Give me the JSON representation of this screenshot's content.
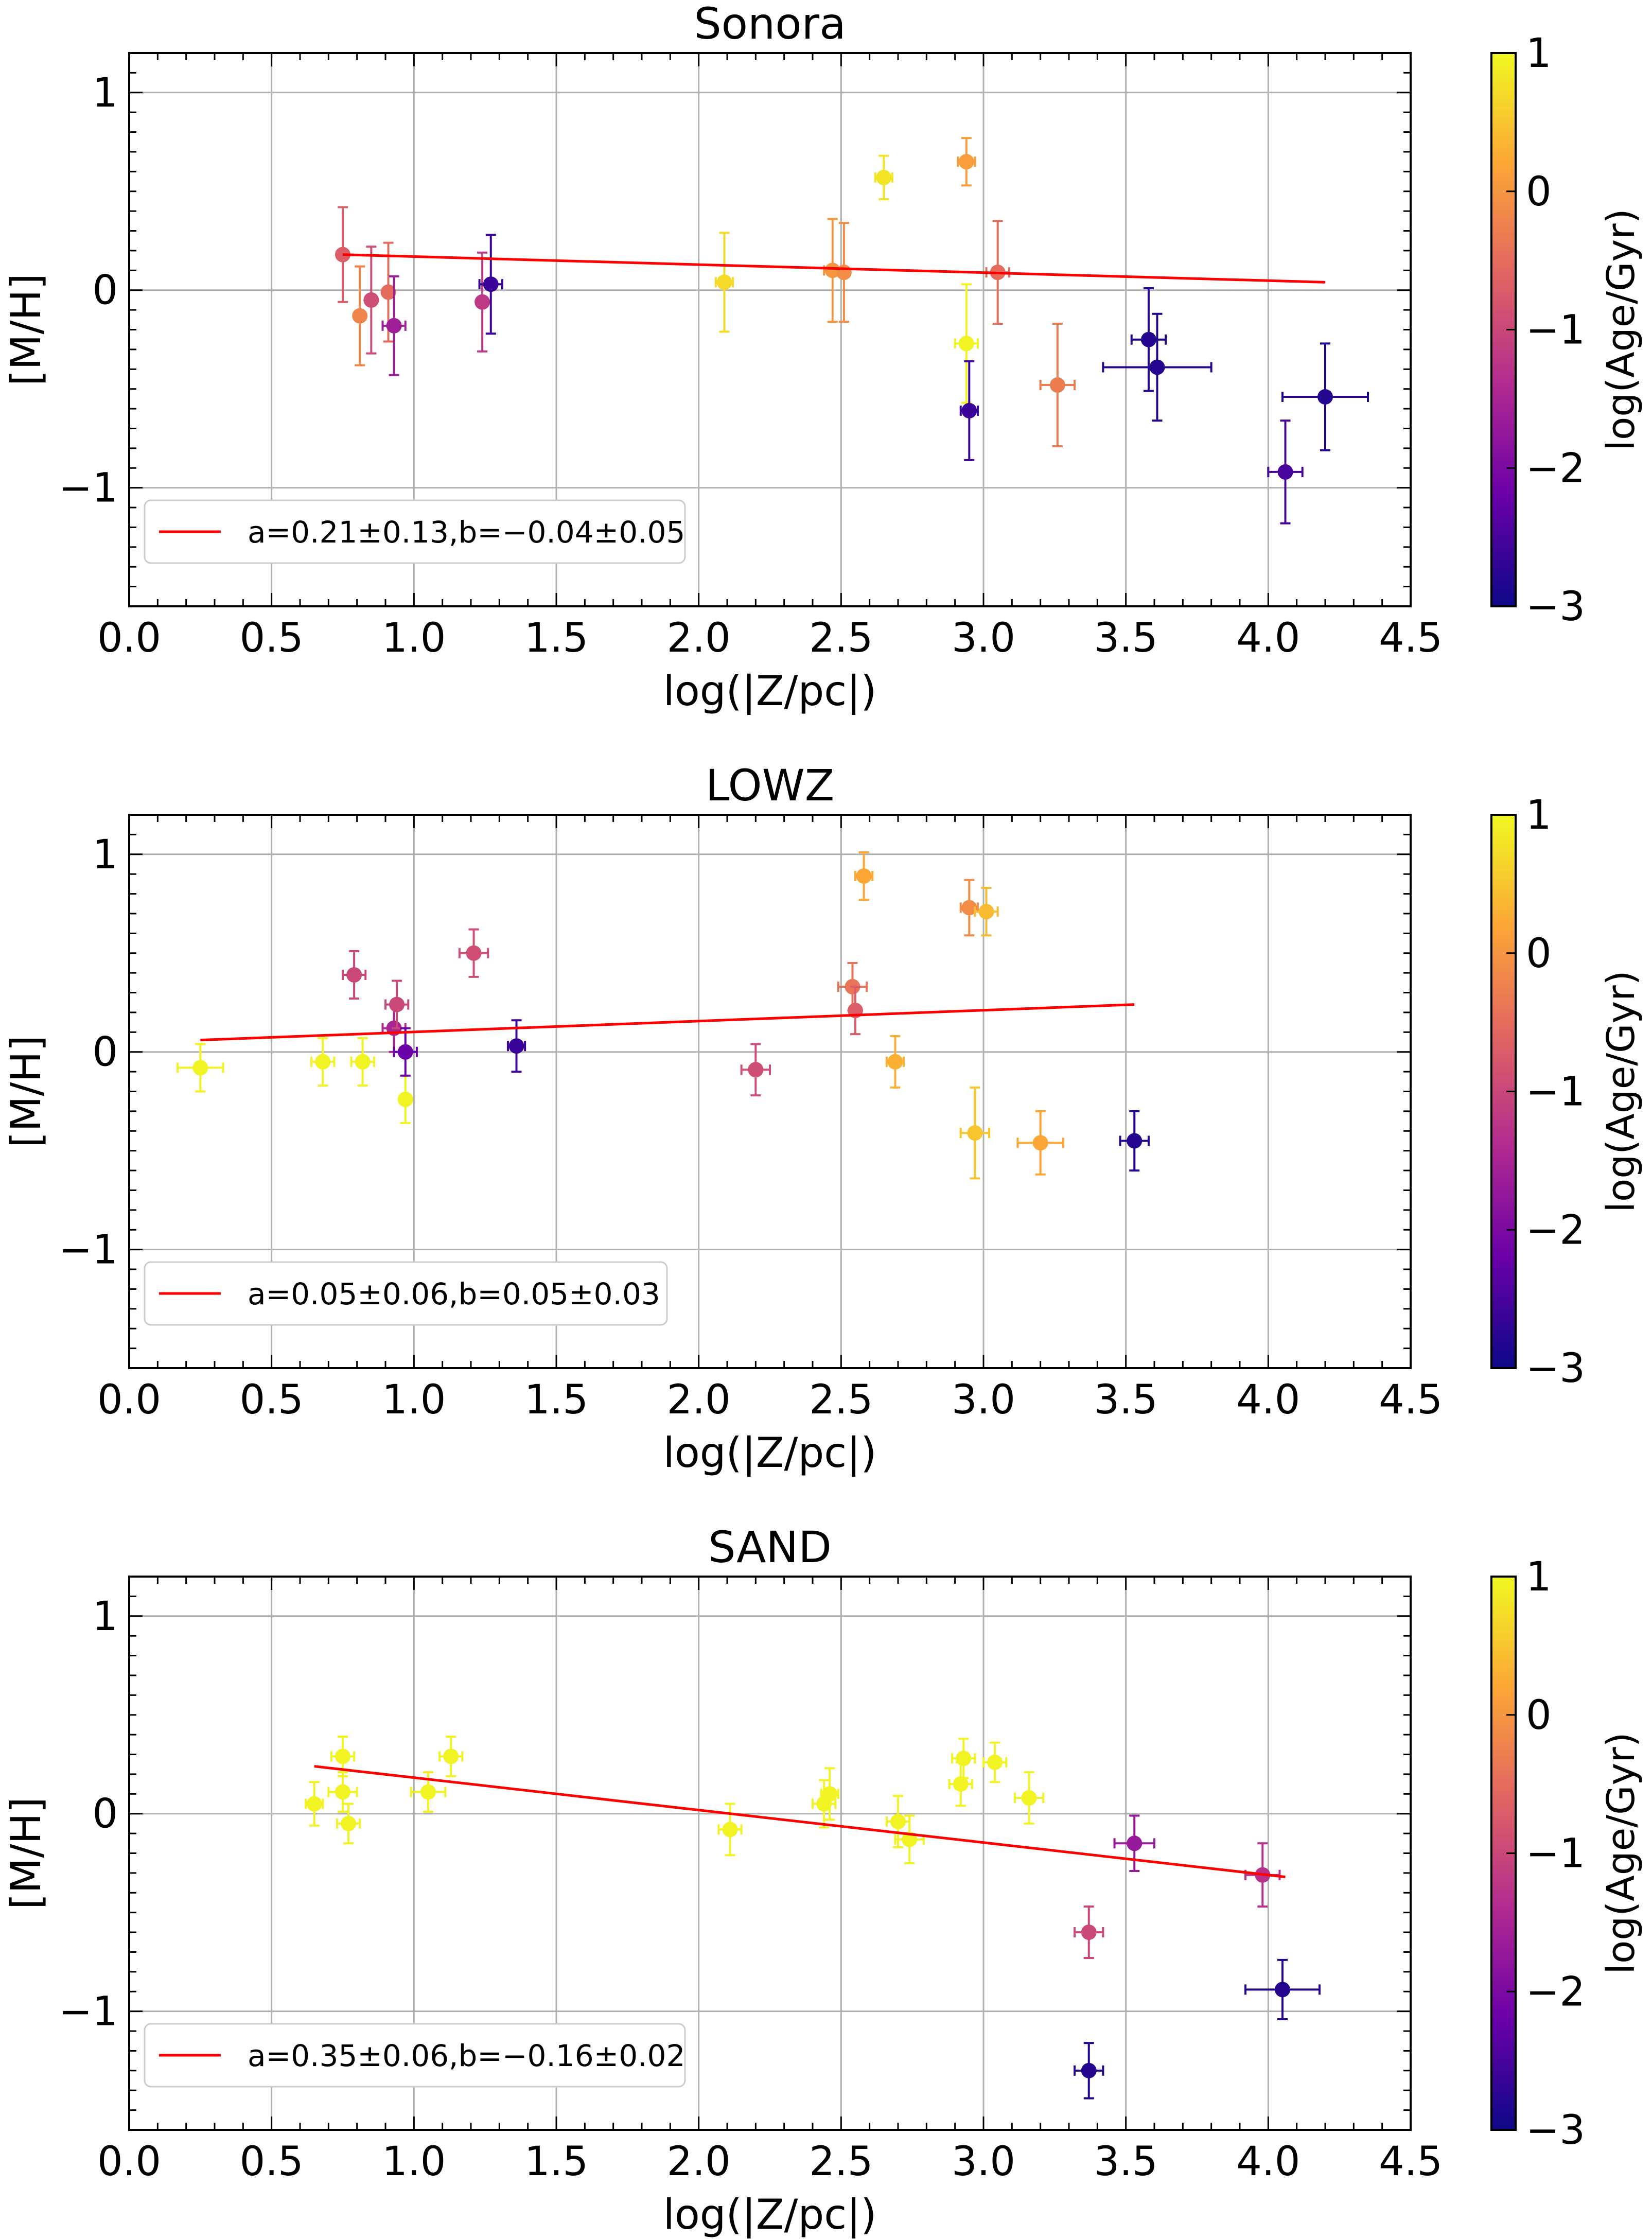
{
  "figure": {
    "colorbar_label": "log(Age/Gyr)",
    "colorbar_ticks": [
      "1",
      "0",
      "−1",
      "−2",
      "−3"
    ],
    "colorbar_values": [
      1,
      0,
      -1,
      -2,
      -3
    ]
  },
  "chart_data": [
    {
      "type": "scatter",
      "title": "Sonora",
      "xlabel": "log(|Z/pc|)",
      "ylabel": "[M/H]",
      "xlim": [
        0.0,
        4.5
      ],
      "ylim": [
        -1.6,
        1.2
      ],
      "xticks": [
        0.0,
        0.5,
        1.0,
        1.5,
        2.0,
        2.5,
        3.0,
        3.5,
        4.0,
        4.5
      ],
      "xtick_labels": [
        "0.0",
        "0.5",
        "1.0",
        "1.5",
        "2.0",
        "2.5",
        "3.0",
        "3.5",
        "4.0",
        "4.5"
      ],
      "yticks": [
        1,
        0,
        -1
      ],
      "ytick_labels": [
        "1",
        "0",
        "−1"
      ],
      "grid": true,
      "color_by": "log(Age/Gyr)",
      "clim": [
        -3,
        1
      ],
      "fit": {
        "x": [
          0.75,
          4.2
        ],
        "y": [
          0.18,
          0.04
        ]
      },
      "legend": {
        "label": "a=0.21±0.13,b=−0.04±0.05",
        "position": "lower-left"
      },
      "points": [
        {
          "x": 0.75,
          "y": 0.18,
          "yerr": 0.24,
          "xerr": 0.0,
          "c": -0.7
        },
        {
          "x": 0.81,
          "y": -0.13,
          "yerr": 0.25,
          "xerr": 0.0,
          "c": -0.2
        },
        {
          "x": 0.85,
          "y": -0.05,
          "yerr": 0.27,
          "xerr": 0.0,
          "c": -0.9
        },
        {
          "x": 0.91,
          "y": -0.01,
          "yerr": 0.25,
          "xerr": 0.0,
          "c": -0.5
        },
        {
          "x": 0.93,
          "y": -0.18,
          "yerr": 0.25,
          "xerr": 0.04,
          "c": -1.6
        },
        {
          "x": 1.24,
          "y": -0.06,
          "yerr": 0.25,
          "xerr": 0.0,
          "c": -1.2
        },
        {
          "x": 1.27,
          "y": 0.03,
          "yerr": 0.25,
          "xerr": 0.04,
          "c": -2.6
        },
        {
          "x": 2.09,
          "y": 0.04,
          "yerr": 0.25,
          "xerr": 0.03,
          "c": 0.7
        },
        {
          "x": 2.47,
          "y": 0.1,
          "yerr": 0.26,
          "xerr": 0.03,
          "c": 0.0
        },
        {
          "x": 2.51,
          "y": 0.09,
          "yerr": 0.25,
          "xerr": 0.0,
          "c": -0.1
        },
        {
          "x": 2.65,
          "y": 0.57,
          "yerr": 0.11,
          "xerr": 0.03,
          "c": 0.8
        },
        {
          "x": 2.94,
          "y": 0.65,
          "yerr": 0.12,
          "xerr": 0.03,
          "c": 0.1
        },
        {
          "x": 2.94,
          "y": -0.27,
          "yerr": 0.3,
          "xerr": 0.04,
          "c": 0.95
        },
        {
          "x": 2.95,
          "y": -0.61,
          "yerr": 0.25,
          "xerr": 0.03,
          "c": -2.6
        },
        {
          "x": 3.05,
          "y": 0.09,
          "yerr": 0.26,
          "xerr": 0.04,
          "c": -0.5
        },
        {
          "x": 3.26,
          "y": -0.48,
          "yerr": 0.31,
          "xerr": 0.06,
          "c": -0.3
        },
        {
          "x": 3.58,
          "y": -0.25,
          "yerr": 0.26,
          "xerr": 0.06,
          "c": -2.8
        },
        {
          "x": 3.61,
          "y": -0.39,
          "yerr": 0.27,
          "xerr": 0.19,
          "c": -2.8
        },
        {
          "x": 4.06,
          "y": -0.92,
          "yerr": 0.26,
          "xerr": 0.06,
          "c": -2.5
        },
        {
          "x": 4.2,
          "y": -0.54,
          "yerr": 0.27,
          "xerr": 0.15,
          "c": -2.8
        }
      ]
    },
    {
      "type": "scatter",
      "title": "LOWZ",
      "xlabel": "log(|Z/pc|)",
      "ylabel": "[M/H]",
      "xlim": [
        0.0,
        4.5
      ],
      "ylim": [
        -1.6,
        1.2
      ],
      "xticks": [
        0.0,
        0.5,
        1.0,
        1.5,
        2.0,
        2.5,
        3.0,
        3.5,
        4.0,
        4.5
      ],
      "xtick_labels": [
        "0.0",
        "0.5",
        "1.0",
        "1.5",
        "2.0",
        "2.5",
        "3.0",
        "3.5",
        "4.0",
        "4.5"
      ],
      "yticks": [
        1,
        0,
        -1
      ],
      "ytick_labels": [
        "1",
        "0",
        "−1"
      ],
      "grid": true,
      "color_by": "log(Age/Gyr)",
      "clim": [
        -3,
        1
      ],
      "fit": {
        "x": [
          0.25,
          3.53
        ],
        "y": [
          0.06,
          0.24
        ]
      },
      "legend": {
        "label": "a=0.05±0.06,b=0.05±0.03",
        "position": "lower-left"
      },
      "points": [
        {
          "x": 0.25,
          "y": -0.08,
          "yerr": 0.12,
          "xerr": 0.08,
          "c": 0.95
        },
        {
          "x": 0.68,
          "y": -0.05,
          "yerr": 0.12,
          "xerr": 0.04,
          "c": 0.95
        },
        {
          "x": 0.79,
          "y": 0.39,
          "yerr": 0.12,
          "xerr": 0.04,
          "c": -1.0
        },
        {
          "x": 0.82,
          "y": -0.05,
          "yerr": 0.12,
          "xerr": 0.04,
          "c": 0.95
        },
        {
          "x": 0.93,
          "y": 0.12,
          "yerr": 0.12,
          "xerr": 0.04,
          "c": -1.5
        },
        {
          "x": 0.94,
          "y": 0.24,
          "yerr": 0.12,
          "xerr": 0.04,
          "c": -1.0
        },
        {
          "x": 0.97,
          "y": -0.24,
          "yerr": 0.12,
          "xerr": 0.0,
          "c": 0.95
        },
        {
          "x": 0.97,
          "y": 0.0,
          "yerr": 0.12,
          "xerr": 0.04,
          "c": -2.2
        },
        {
          "x": 1.21,
          "y": 0.5,
          "yerr": 0.12,
          "xerr": 0.05,
          "c": -0.9
        },
        {
          "x": 1.36,
          "y": 0.03,
          "yerr": 0.13,
          "xerr": 0.03,
          "c": -2.6
        },
        {
          "x": 2.2,
          "y": -0.09,
          "yerr": 0.13,
          "xerr": 0.05,
          "c": -0.9
        },
        {
          "x": 2.54,
          "y": 0.33,
          "yerr": 0.12,
          "xerr": 0.05,
          "c": -0.4
        },
        {
          "x": 2.55,
          "y": 0.21,
          "yerr": 0.12,
          "xerr": 0.0,
          "c": -0.7
        },
        {
          "x": 2.58,
          "y": 0.89,
          "yerr": 0.12,
          "xerr": 0.03,
          "c": 0.2
        },
        {
          "x": 2.69,
          "y": -0.05,
          "yerr": 0.13,
          "xerr": 0.03,
          "c": 0.3
        },
        {
          "x": 2.95,
          "y": 0.73,
          "yerr": 0.14,
          "xerr": 0.03,
          "c": -0.1
        },
        {
          "x": 2.97,
          "y": -0.41,
          "yerr": 0.23,
          "xerr": 0.05,
          "c": 0.5
        },
        {
          "x": 3.01,
          "y": 0.71,
          "yerr": 0.12,
          "xerr": 0.04,
          "c": 0.4
        },
        {
          "x": 3.2,
          "y": -0.46,
          "yerr": 0.16,
          "xerr": 0.08,
          "c": 0.2
        },
        {
          "x": 3.53,
          "y": -0.45,
          "yerr": 0.15,
          "xerr": 0.05,
          "c": -2.8
        }
      ]
    },
    {
      "type": "scatter",
      "title": "SAND",
      "xlabel": "log(|Z/pc|)",
      "ylabel": "[M/H]",
      "xlim": [
        0.0,
        4.5
      ],
      "ylim": [
        -1.6,
        1.2
      ],
      "xticks": [
        0.0,
        0.5,
        1.0,
        1.5,
        2.0,
        2.5,
        3.0,
        3.5,
        4.0,
        4.5
      ],
      "xtick_labels": [
        "0.0",
        "0.5",
        "1.0",
        "1.5",
        "2.0",
        "2.5",
        "3.0",
        "3.5",
        "4.0",
        "4.5"
      ],
      "yticks": [
        1,
        0,
        -1
      ],
      "ytick_labels": [
        "1",
        "0",
        "−1"
      ],
      "grid": true,
      "color_by": "log(Age/Gyr)",
      "clim": [
        -3,
        1
      ],
      "fit": {
        "x": [
          0.65,
          4.06
        ],
        "y": [
          0.24,
          -0.32
        ]
      },
      "legend": {
        "label": "a=0.35±0.06,b=−0.16±0.02",
        "position": "lower-left"
      },
      "points": [
        {
          "x": 0.65,
          "y": 0.05,
          "yerr": 0.11,
          "xerr": 0.03,
          "c": 0.95
        },
        {
          "x": 0.75,
          "y": 0.29,
          "yerr": 0.1,
          "xerr": 0.04,
          "c": 0.95
        },
        {
          "x": 0.75,
          "y": 0.11,
          "yerr": 0.1,
          "xerr": 0.05,
          "c": 0.95
        },
        {
          "x": 0.77,
          "y": -0.05,
          "yerr": 0.1,
          "xerr": 0.04,
          "c": 0.95
        },
        {
          "x": 1.05,
          "y": 0.11,
          "yerr": 0.1,
          "xerr": 0.06,
          "c": 0.95
        },
        {
          "x": 1.13,
          "y": 0.29,
          "yerr": 0.1,
          "xerr": 0.04,
          "c": 0.95
        },
        {
          "x": 2.11,
          "y": -0.08,
          "yerr": 0.13,
          "xerr": 0.04,
          "c": 0.95
        },
        {
          "x": 2.44,
          "y": 0.05,
          "yerr": 0.12,
          "xerr": 0.04,
          "c": 0.95
        },
        {
          "x": 2.46,
          "y": 0.1,
          "yerr": 0.13,
          "xerr": 0.03,
          "c": 0.95
        },
        {
          "x": 2.7,
          "y": -0.04,
          "yerr": 0.13,
          "xerr": 0.04,
          "c": 0.95
        },
        {
          "x": 2.74,
          "y": -0.13,
          "yerr": 0.12,
          "xerr": 0.05,
          "c": 0.95
        },
        {
          "x": 2.92,
          "y": 0.15,
          "yerr": 0.11,
          "xerr": 0.04,
          "c": 0.95
        },
        {
          "x": 2.93,
          "y": 0.28,
          "yerr": 0.1,
          "xerr": 0.04,
          "c": 0.95
        },
        {
          "x": 3.04,
          "y": 0.26,
          "yerr": 0.1,
          "xerr": 0.04,
          "c": 0.95
        },
        {
          "x": 3.16,
          "y": 0.08,
          "yerr": 0.13,
          "xerr": 0.05,
          "c": 0.95
        },
        {
          "x": 3.37,
          "y": -0.6,
          "yerr": 0.13,
          "xerr": 0.05,
          "c": -1.0
        },
        {
          "x": 3.37,
          "y": -1.3,
          "yerr": 0.14,
          "xerr": 0.05,
          "c": -2.8
        },
        {
          "x": 3.53,
          "y": -0.15,
          "yerr": 0.14,
          "xerr": 0.07,
          "c": -1.7
        },
        {
          "x": 3.98,
          "y": -0.31,
          "yerr": 0.16,
          "xerr": 0.06,
          "c": -1.3
        },
        {
          "x": 4.05,
          "y": -0.89,
          "yerr": 0.15,
          "xerr": 0.13,
          "c": -2.8
        }
      ]
    }
  ]
}
